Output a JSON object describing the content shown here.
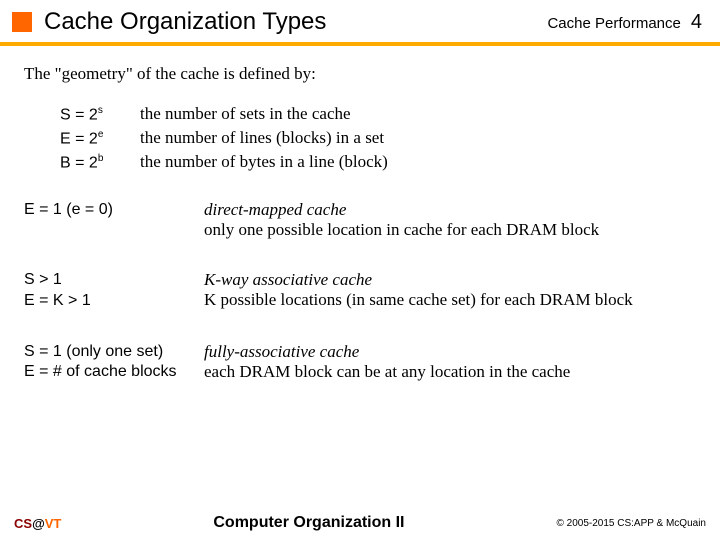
{
  "header": {
    "title": "Cache Organization Types",
    "section": "Cache Performance",
    "page": "4"
  },
  "intro": "The \"geometry\" of the cache is defined by:",
  "geometry": [
    {
      "var": "S = 2",
      "exp": "s",
      "desc": "the number of sets in the cache"
    },
    {
      "var": "E = 2",
      "exp": "e",
      "desc": "the number of lines (blocks) in a set"
    },
    {
      "var": "B = 2",
      "exp": "b",
      "desc": "the number of bytes in a line (block)"
    }
  ],
  "types": [
    {
      "cond": [
        "E = 1 (e = 0)"
      ],
      "name": "direct-mapped cache",
      "detail": "only one possible location in cache for each DRAM block"
    },
    {
      "cond": [
        "S > 1",
        "E = K > 1"
      ],
      "name": "K-way associative cache",
      "detail": "K possible locations (in same cache set) for each DRAM block"
    },
    {
      "cond": [
        "S = 1 (only one set)",
        "E = # of cache blocks"
      ],
      "name": "fully-associative cache",
      "detail": "each DRAM block can be at any location in the cache"
    }
  ],
  "footer": {
    "left_cs": "CS",
    "left_at": "@",
    "left_vt": "VT",
    "center": "Computer Organization II",
    "right": "© 2005-2015 CS:APP & McQuain"
  }
}
